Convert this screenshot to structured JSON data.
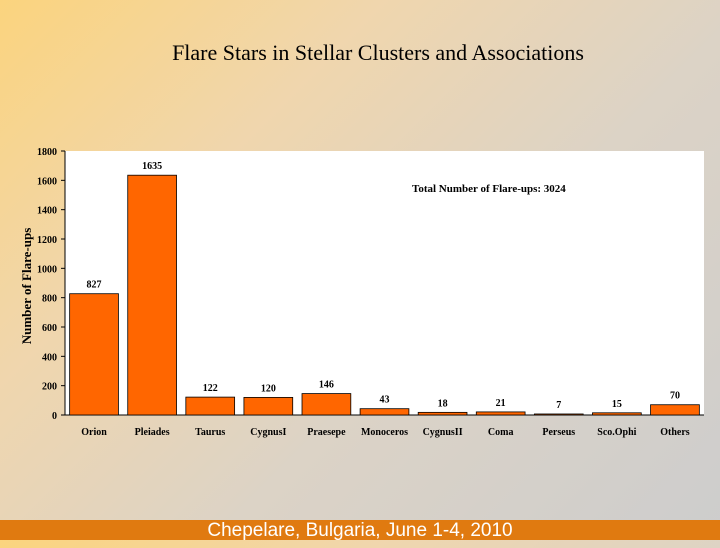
{
  "slide": {
    "title": "Flare Stars in Stellar Clusters and Associations",
    "footer": "Chepelare, Bulgaria, June 1-4, 2010"
  },
  "chart_data": {
    "type": "bar",
    "ylabel": "Number of Flare-ups",
    "xlabel": "",
    "ylim": [
      0,
      1800
    ],
    "yticks": [
      0,
      200,
      400,
      600,
      800,
      1000,
      1200,
      1400,
      1600,
      1800
    ],
    "grid": false,
    "annotation": "Total Number of Flare-ups: 3024",
    "categories": [
      "Orion",
      "Pleiades",
      "Taurus",
      "CygnusI",
      "Praesepe",
      "Monoceros",
      "CygnusII",
      "Coma",
      "Perseus",
      "Sco.Ophi",
      "Others"
    ],
    "values": [
      827,
      1635,
      122,
      120,
      146,
      43,
      18,
      21,
      7,
      15,
      70
    ],
    "colors": {
      "bar": "#ff6600",
      "bar_stroke": "#000000",
      "plot_bg": "#ffffff"
    }
  }
}
